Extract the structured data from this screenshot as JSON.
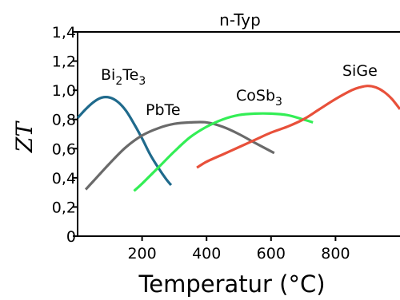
{
  "chart_data": {
    "type": "line",
    "title": "n-Typ",
    "xlabel": "Temperatur (°C)",
    "ylabel": "ZT",
    "xlim": [
      0,
      1000
    ],
    "ylim": [
      0,
      1.4
    ],
    "x_ticks": [
      "200",
      "400",
      "600",
      "800"
    ],
    "y_ticks": [
      "0",
      "0,2",
      "0,4",
      "0,6",
      "0,8",
      "1,0",
      "1,2",
      "1,4"
    ],
    "grid": false,
    "legend": "none",
    "series": [
      {
        "name": "Bi2Te3",
        "label_main": "Bi",
        "label_sub1": "2",
        "label_mid": "Te",
        "label_sub2": "3",
        "color": "#1f6a8c",
        "x": [
          0,
          25,
          50,
          75,
          100,
          125,
          150,
          175,
          200,
          225,
          250,
          275,
          290
        ],
        "y": [
          0.81,
          0.87,
          0.92,
          0.95,
          0.95,
          0.92,
          0.86,
          0.77,
          0.67,
          0.56,
          0.47,
          0.39,
          0.35
        ]
      },
      {
        "name": "PbTe",
        "label_main": "PbTe",
        "color": "#6a6a6a",
        "x": [
          25,
          50,
          100,
          150,
          200,
          250,
          300,
          350,
          400,
          450,
          500,
          550,
          610
        ],
        "y": [
          0.32,
          0.38,
          0.5,
          0.61,
          0.69,
          0.74,
          0.77,
          0.78,
          0.78,
          0.75,
          0.7,
          0.64,
          0.57
        ]
      },
      {
        "name": "CoSb3",
        "label_main": "CoSb",
        "label_sub1": "3",
        "color": "#33ee55",
        "x": [
          175,
          200,
          250,
          300,
          350,
          400,
          450,
          500,
          550,
          600,
          650,
          700,
          730
        ],
        "y": [
          0.31,
          0.36,
          0.47,
          0.58,
          0.68,
          0.75,
          0.8,
          0.83,
          0.84,
          0.84,
          0.83,
          0.8,
          0.78
        ]
      },
      {
        "name": "SiGe",
        "label_main": "SiGe",
        "color": "#e8503a",
        "x": [
          370,
          400,
          450,
          500,
          550,
          600,
          650,
          700,
          750,
          800,
          850,
          875,
          900,
          925,
          950,
          975,
          1000
        ],
        "y": [
          0.47,
          0.51,
          0.56,
          0.61,
          0.66,
          0.71,
          0.75,
          0.8,
          0.87,
          0.94,
          1.0,
          1.02,
          1.03,
          1.02,
          0.99,
          0.94,
          0.87
        ]
      }
    ]
  }
}
